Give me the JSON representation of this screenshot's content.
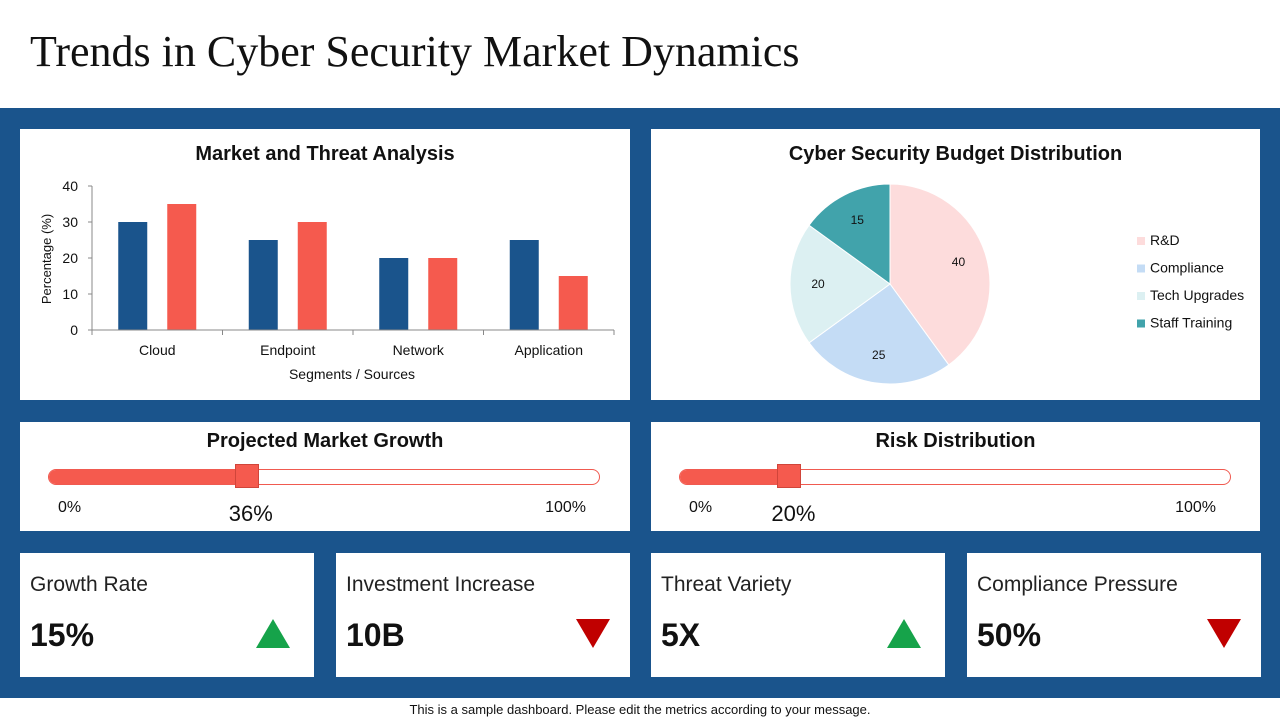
{
  "page": {
    "title": "Trends in Cyber Security Market Dynamics",
    "footer": "This is a sample dashboard. Please edit the metrics according to your message."
  },
  "colors": {
    "band": "#1a548c",
    "series_navy": "#1a548c",
    "series_coral": "#f55a4e",
    "pie_rd": "#fddcdc",
    "pie_compliance": "#c4dcf5",
    "pie_tech": "#dcf0f2",
    "pie_staff": "#41a3ab",
    "up": "#16a34a",
    "down": "#c00000"
  },
  "chart_data": [
    {
      "type": "bar",
      "title": "Market and Threat Analysis",
      "xlabel": "Segments / Sources",
      "ylabel": "Percentage (%)",
      "categories": [
        "Cloud",
        "Endpoint",
        "Network",
        "Application"
      ],
      "series": [
        {
          "values": [
            30,
            25,
            20,
            25
          ]
        },
        {
          "values": [
            35,
            30,
            20,
            15
          ]
        }
      ],
      "ylim": [
        0,
        40
      ],
      "yticks": [
        "0",
        "10",
        "20",
        "30",
        "40"
      ],
      "grid": false
    },
    {
      "type": "pie",
      "title": "Cyber Security Budget Distribution",
      "labels": [
        "R&D",
        "Compliance",
        "Tech Upgrades",
        "Staff Training"
      ],
      "values": [
        40,
        25,
        20,
        15
      ],
      "legend": "right"
    }
  ],
  "progress": {
    "growth": {
      "title": "Projected Market Growth",
      "value": 36,
      "display": "36%",
      "min_label": "0%",
      "max_label": "100%"
    },
    "risk": {
      "title": "Risk Distribution",
      "value": 20,
      "display": "20%",
      "min_label": "0%",
      "max_label": "100%"
    }
  },
  "kpis": [
    {
      "label": "Growth Rate",
      "value": "15%",
      "trend": "up",
      "icon": "triangle-up-icon"
    },
    {
      "label": "Investment Increase",
      "value": "10B",
      "trend": "down",
      "icon": "triangle-down-icon"
    },
    {
      "label": "Threat Variety",
      "value": "5X",
      "trend": "up",
      "icon": "triangle-up-icon"
    },
    {
      "label": "Compliance Pressure",
      "value": "50%",
      "trend": "down",
      "icon": "triangle-down-icon"
    }
  ]
}
